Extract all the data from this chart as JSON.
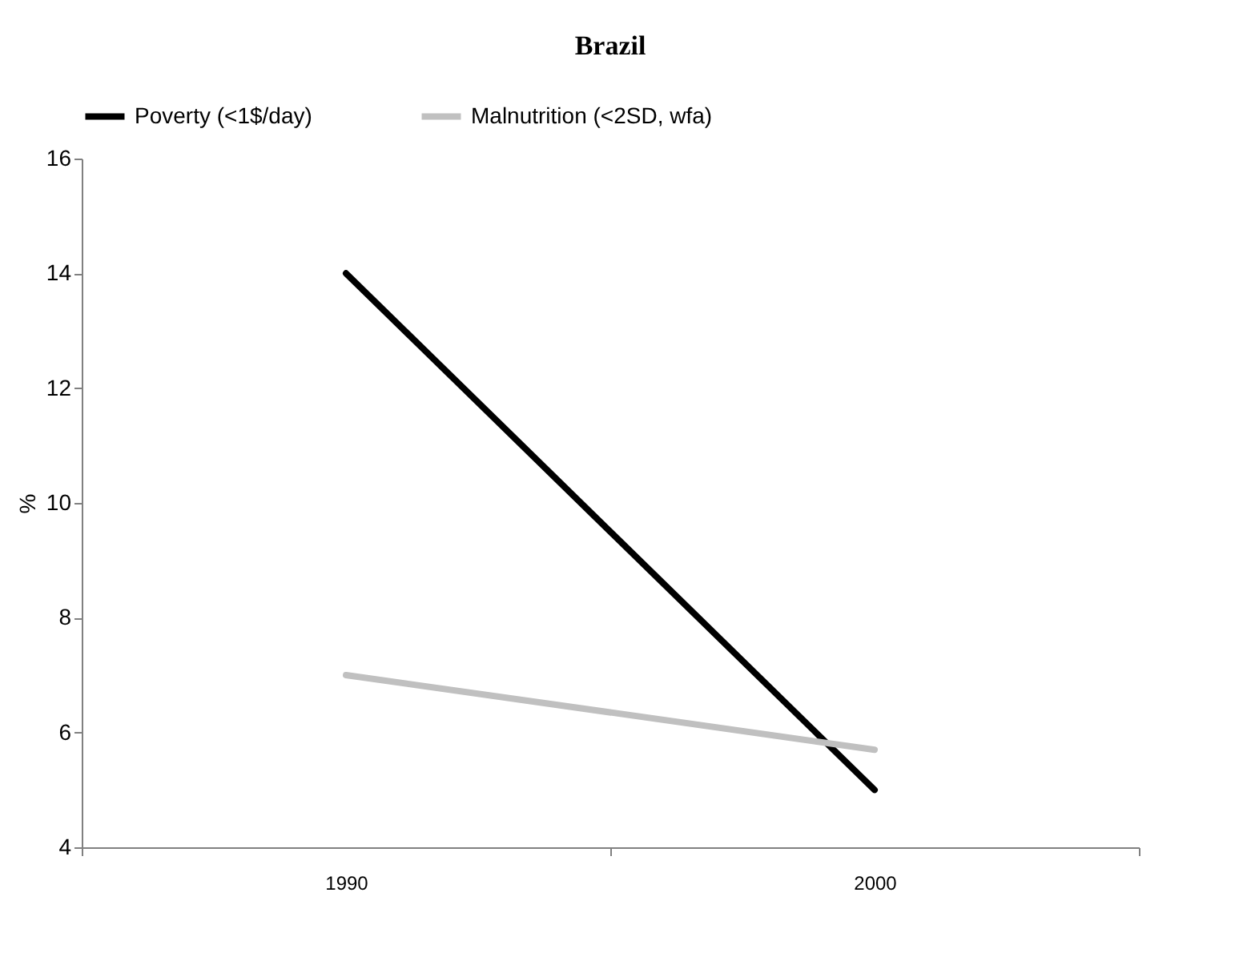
{
  "chart_data": {
    "type": "line",
    "title": "Brazil",
    "ylabel": "%",
    "categories": [
      "1990",
      "2000"
    ],
    "series": [
      {
        "name": "Poverty (<1$/day)",
        "color": "#000000",
        "values": [
          14,
          5
        ]
      },
      {
        "name": "Malnutrition (<2SD, wfa)",
        "color": "#c0c0c0",
        "values": [
          7,
          5.7
        ]
      }
    ],
    "ylim": [
      4,
      16
    ],
    "yticks": [
      4,
      6,
      8,
      10,
      12,
      14,
      16
    ],
    "grid": false,
    "legend": "top",
    "marker": "none",
    "line_style": "solid"
  }
}
